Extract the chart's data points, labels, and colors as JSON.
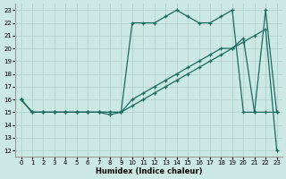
{
  "xlabel": "Humidex (Indice chaleur)",
  "background_color": "#cce8e4",
  "grid_color": "#b0ccc8",
  "line_color": "#1a6b5e",
  "xlim": [
    -0.5,
    23.5
  ],
  "ylim": [
    11.5,
    23.5
  ],
  "xticks": [
    0,
    1,
    2,
    3,
    4,
    5,
    6,
    7,
    8,
    9,
    10,
    11,
    12,
    13,
    14,
    15,
    16,
    17,
    18,
    19,
    20,
    21,
    22,
    23
  ],
  "yticks": [
    12,
    13,
    14,
    15,
    16,
    17,
    18,
    19,
    20,
    21,
    22,
    23
  ],
  "line1_x": [
    0,
    1,
    2,
    3,
    4,
    5,
    6,
    7,
    8,
    9,
    10,
    11,
    12,
    13,
    14,
    15,
    16,
    17,
    18,
    19,
    20,
    21,
    22,
    23
  ],
  "line1_y": [
    16,
    15,
    15,
    15,
    15,
    15,
    15,
    15,
    15,
    15,
    22,
    22,
    22,
    22.5,
    23,
    22.5,
    22,
    22,
    22.5,
    23,
    15,
    15,
    23,
    15
  ],
  "line2_x": [
    0,
    1,
    2,
    3,
    4,
    5,
    6,
    7,
    8,
    9,
    10,
    11,
    12,
    13,
    14,
    15,
    16,
    17,
    18,
    19,
    20,
    21,
    22,
    23
  ],
  "line2_y": [
    16,
    15,
    15,
    15,
    15,
    15,
    15,
    15,
    15,
    15,
    16,
    16.5,
    17,
    17.5,
    18,
    18.5,
    19,
    19.5,
    20,
    20,
    20.5,
    21,
    21.5,
    12
  ],
  "line3_x": [
    0,
    1,
    2,
    3,
    4,
    5,
    6,
    7,
    8,
    9,
    10,
    11,
    12,
    13,
    14,
    15,
    16,
    17,
    18,
    19,
    20,
    21,
    22,
    23
  ],
  "line3_y": [
    16,
    15,
    15,
    15,
    15,
    15,
    15,
    15,
    14.8,
    15,
    15.5,
    16,
    16.5,
    17,
    17.5,
    18,
    18.5,
    19,
    19.5,
    20,
    20.8,
    15,
    15,
    15
  ]
}
